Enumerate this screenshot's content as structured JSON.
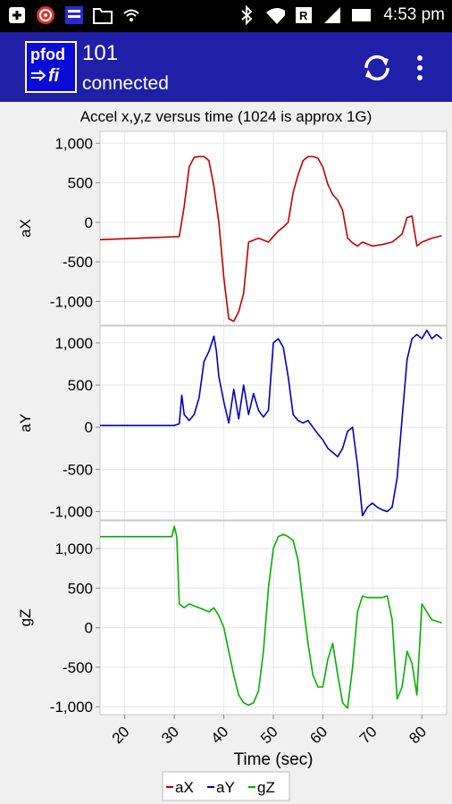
{
  "status_bar": {
    "time": "4:53 pm",
    "icons": [
      "add-box-icon",
      "target-icon",
      "app-notify-icon",
      "folder-icon",
      "wifi-icon",
      "bluetooth-icon",
      "wifi-signal-icon",
      "roaming-r-icon",
      "cell-signal-icon",
      "battery-icon"
    ]
  },
  "app_bar": {
    "logo_line1": "pfod",
    "logo_line2": "fi",
    "title": "101",
    "subtitle": "connected",
    "background": "#1f1fa8"
  },
  "chart_data": {
    "type": "line",
    "title": "Accel x,y,z versus time (1024 is approx 1G)",
    "xlabel": "Time (sec)",
    "xlim": [
      15,
      85
    ],
    "xticks": [
      20,
      30,
      40,
      50,
      60,
      70,
      80
    ],
    "xtick_labels": [
      "20",
      "30",
      "40",
      "50",
      "60",
      "70",
      "80"
    ],
    "grid": true,
    "legend_position": "bottom-center",
    "legend": [
      "aX",
      "aY",
      "gZ"
    ],
    "panels": [
      {
        "ylabel": "aX",
        "ylim": [
          -1300,
          1150
        ],
        "yticks": [
          1000,
          500,
          0,
          -500,
          -1000
        ],
        "ytick_labels": [
          "1,000",
          "500",
          "0",
          "-500",
          "-1,000"
        ],
        "series": {
          "name": "aX",
          "color": "#c00000",
          "x": [
            15,
            31,
            32,
            33,
            34,
            35,
            36,
            37,
            38,
            39,
            40,
            41,
            42,
            43,
            44,
            45,
            47,
            49,
            50,
            51,
            52,
            53,
            54,
            55,
            56,
            57,
            58,
            59,
            60,
            61,
            62,
            63,
            64,
            65,
            66,
            67,
            68,
            70,
            72,
            74,
            76,
            77,
            78,
            79,
            80,
            82,
            84
          ],
          "y": [
            -220,
            -180,
            200,
            700,
            820,
            830,
            830,
            780,
            450,
            0,
            -700,
            -1220,
            -1250,
            -1130,
            -900,
            -250,
            -200,
            -250,
            -180,
            -110,
            -60,
            0,
            380,
            600,
            780,
            830,
            830,
            810,
            700,
            480,
            350,
            280,
            150,
            -200,
            -260,
            -300,
            -250,
            -300,
            -280,
            -250,
            -150,
            60,
            80,
            -300,
            -250,
            -200,
            -170
          ]
        }
      },
      {
        "ylabel": "aY",
        "ylim": [
          -1100,
          1200
        ],
        "yticks": [
          1000,
          500,
          0,
          -500,
          -1000
        ],
        "ytick_labels": [
          "1,000",
          "500",
          "0",
          "-500",
          "-1,000"
        ],
        "series": {
          "name": "aY",
          "color": "#0000c0",
          "x": [
            15,
            30,
            31,
            31.5,
            32,
            33,
            34,
            35,
            36,
            37,
            38,
            38.5,
            39,
            40,
            41,
            42,
            43,
            44,
            45,
            46,
            47,
            48,
            49,
            50,
            51,
            52,
            53,
            54,
            55,
            56,
            57,
            58,
            59,
            60,
            61,
            62,
            63,
            64,
            65,
            66,
            67,
            68,
            69,
            70,
            71,
            72,
            73,
            74,
            75,
            76,
            77,
            78,
            79,
            80,
            81,
            82,
            83,
            84
          ],
          "y": [
            20,
            20,
            40,
            380,
            150,
            80,
            150,
            350,
            780,
            900,
            1080,
            900,
            600,
            300,
            50,
            450,
            100,
            500,
            150,
            400,
            200,
            120,
            200,
            1000,
            1050,
            950,
            600,
            150,
            80,
            50,
            80,
            0,
            -80,
            -150,
            -250,
            -300,
            -350,
            -250,
            -50,
            0,
            -450,
            -1050,
            -950,
            -900,
            -950,
            -980,
            -1000,
            -950,
            -600,
            100,
            800,
            1050,
            1100,
            1050,
            1150,
            1050,
            1100,
            1050
          ]
        }
      },
      {
        "ylabel": "gZ",
        "ylim": [
          -1100,
          1350
        ],
        "yticks": [
          1000,
          500,
          0,
          -500,
          -1000
        ],
        "ytick_labels": [
          "1,000",
          "500",
          "0",
          "-500",
          "-1,000"
        ],
        "series": {
          "name": "gZ",
          "color": "#00b000",
          "x": [
            15,
            29.5,
            30,
            30.5,
            31,
            32,
            33,
            35,
            37,
            38,
            39,
            40,
            41,
            42,
            43,
            44,
            45,
            46,
            47,
            48,
            49,
            50,
            51,
            52,
            53,
            54,
            55,
            56,
            57,
            58,
            59,
            60,
            61,
            62,
            63,
            64,
            65,
            66,
            67,
            68,
            69,
            70,
            71,
            72,
            73,
            74,
            75,
            76,
            77,
            78,
            79,
            80,
            81,
            82,
            83,
            84
          ],
          "y": [
            1150,
            1150,
            1280,
            1150,
            300,
            250,
            300,
            250,
            200,
            250,
            150,
            0,
            -300,
            -600,
            -850,
            -950,
            -980,
            -950,
            -800,
            -300,
            500,
            1000,
            1150,
            1180,
            1150,
            1100,
            850,
            300,
            -200,
            -600,
            -750,
            -750,
            -400,
            -200,
            -600,
            -950,
            -1020,
            -500,
            200,
            400,
            380,
            380,
            380,
            380,
            400,
            100,
            -900,
            -750,
            -300,
            -450,
            -850,
            300,
            200,
            100,
            80,
            60
          ]
        }
      }
    ]
  }
}
